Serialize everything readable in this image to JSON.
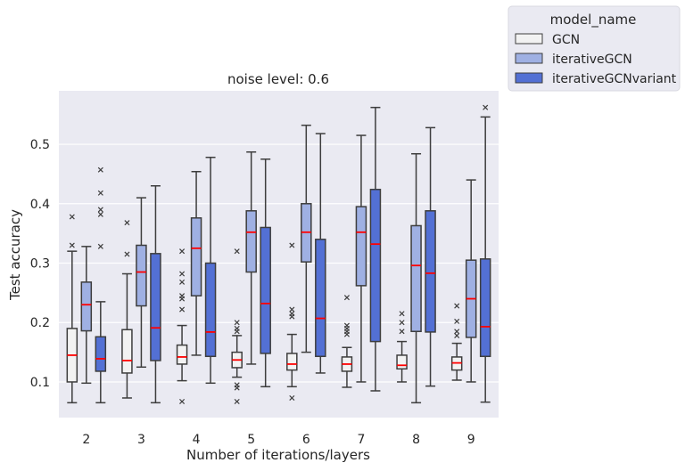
{
  "chart_data": {
    "type": "box",
    "title": "noise level: 0.6",
    "xlabel": "Number of iterations/layers",
    "ylabel": "Test accuracy",
    "categories": [
      "2",
      "3",
      "4",
      "5",
      "6",
      "7",
      "8",
      "9"
    ],
    "yticks": [
      "0.1",
      "0.2",
      "0.3",
      "0.4",
      "0.5"
    ],
    "ylim": [
      0.04,
      0.59
    ],
    "grid": true,
    "legend": {
      "title": "model_name",
      "placement": "outside-top-right",
      "entries": [
        "GCN",
        "iterativeGCN",
        "iterativeGCNvariant"
      ]
    },
    "series": [
      {
        "name": "GCN",
        "color": "#f2f2f2",
        "boxes": [
          {
            "whislo": 0.065,
            "q1": 0.1,
            "med": 0.145,
            "q3": 0.19,
            "whishi": 0.32,
            "fliers": [
              0.33,
              0.378
            ]
          },
          {
            "whislo": 0.073,
            "q1": 0.115,
            "med": 0.136,
            "q3": 0.188,
            "whishi": 0.282,
            "fliers": [
              0.315,
              0.368
            ]
          },
          {
            "whislo": 0.102,
            "q1": 0.13,
            "med": 0.142,
            "q3": 0.162,
            "whishi": 0.195,
            "fliers": [
              0.067,
              0.222,
              0.24,
              0.245,
              0.268,
              0.282,
              0.32
            ]
          },
          {
            "whislo": 0.108,
            "q1": 0.124,
            "med": 0.137,
            "q3": 0.15,
            "whishi": 0.178,
            "fliers": [
              0.067,
              0.09,
              0.095,
              0.185,
              0.19,
              0.2,
              0.32
            ]
          },
          {
            "whislo": 0.092,
            "q1": 0.12,
            "med": 0.13,
            "q3": 0.148,
            "whishi": 0.18,
            "fliers": [
              0.073,
              0.21,
              0.215,
              0.222,
              0.33
            ]
          },
          {
            "whislo": 0.091,
            "q1": 0.118,
            "med": 0.13,
            "q3": 0.142,
            "whishi": 0.158,
            "fliers": [
              0.18,
              0.185,
              0.19,
              0.195,
              0.242
            ]
          },
          {
            "whislo": 0.1,
            "q1": 0.122,
            "med": 0.128,
            "q3": 0.145,
            "whishi": 0.168,
            "fliers": [
              0.185,
              0.2,
              0.215
            ]
          },
          {
            "whislo": 0.103,
            "q1": 0.12,
            "med": 0.132,
            "q3": 0.142,
            "whishi": 0.165,
            "fliers": [
              0.178,
              0.185,
              0.202,
              0.228
            ]
          }
        ]
      },
      {
        "name": "iterativeGCN",
        "color": "#9fb0e3",
        "boxes": [
          {
            "whislo": 0.098,
            "q1": 0.186,
            "med": 0.23,
            "q3": 0.268,
            "whishi": 0.328,
            "fliers": []
          },
          {
            "whislo": 0.125,
            "q1": 0.228,
            "med": 0.285,
            "q3": 0.33,
            "whishi": 0.41,
            "fliers": []
          },
          {
            "whislo": 0.145,
            "q1": 0.245,
            "med": 0.325,
            "q3": 0.376,
            "whishi": 0.454,
            "fliers": []
          },
          {
            "whislo": 0.13,
            "q1": 0.285,
            "med": 0.352,
            "q3": 0.388,
            "whishi": 0.487,
            "fliers": []
          },
          {
            "whislo": 0.15,
            "q1": 0.302,
            "med": 0.352,
            "q3": 0.4,
            "whishi": 0.532,
            "fliers": []
          },
          {
            "whislo": 0.1,
            "q1": 0.262,
            "med": 0.352,
            "q3": 0.395,
            "whishi": 0.515,
            "fliers": []
          },
          {
            "whislo": 0.065,
            "q1": 0.185,
            "med": 0.296,
            "q3": 0.363,
            "whishi": 0.484,
            "fliers": []
          },
          {
            "whislo": 0.1,
            "q1": 0.175,
            "med": 0.24,
            "q3": 0.305,
            "whishi": 0.44,
            "fliers": []
          }
        ]
      },
      {
        "name": "iterativeGCNvariant",
        "color": "#5370d4",
        "boxes": [
          {
            "whislo": 0.065,
            "q1": 0.118,
            "med": 0.139,
            "q3": 0.176,
            "whishi": 0.235,
            "fliers": [
              0.328,
              0.382,
              0.39,
              0.418,
              0.457
            ]
          },
          {
            "whislo": 0.065,
            "q1": 0.136,
            "med": 0.191,
            "q3": 0.316,
            "whishi": 0.43,
            "fliers": []
          },
          {
            "whislo": 0.098,
            "q1": 0.143,
            "med": 0.184,
            "q3": 0.3,
            "whishi": 0.478,
            "fliers": []
          },
          {
            "whislo": 0.092,
            "q1": 0.148,
            "med": 0.232,
            "q3": 0.36,
            "whishi": 0.475,
            "fliers": []
          },
          {
            "whislo": 0.115,
            "q1": 0.143,
            "med": 0.207,
            "q3": 0.34,
            "whishi": 0.518,
            "fliers": []
          },
          {
            "whislo": 0.085,
            "q1": 0.168,
            "med": 0.332,
            "q3": 0.424,
            "whishi": 0.562,
            "fliers": []
          },
          {
            "whislo": 0.093,
            "q1": 0.184,
            "med": 0.283,
            "q3": 0.388,
            "whishi": 0.528,
            "fliers": []
          },
          {
            "whislo": 0.066,
            "q1": 0.143,
            "med": 0.193,
            "q3": 0.307,
            "whishi": 0.546,
            "fliers": [
              0.562
            ]
          }
        ]
      }
    ]
  }
}
